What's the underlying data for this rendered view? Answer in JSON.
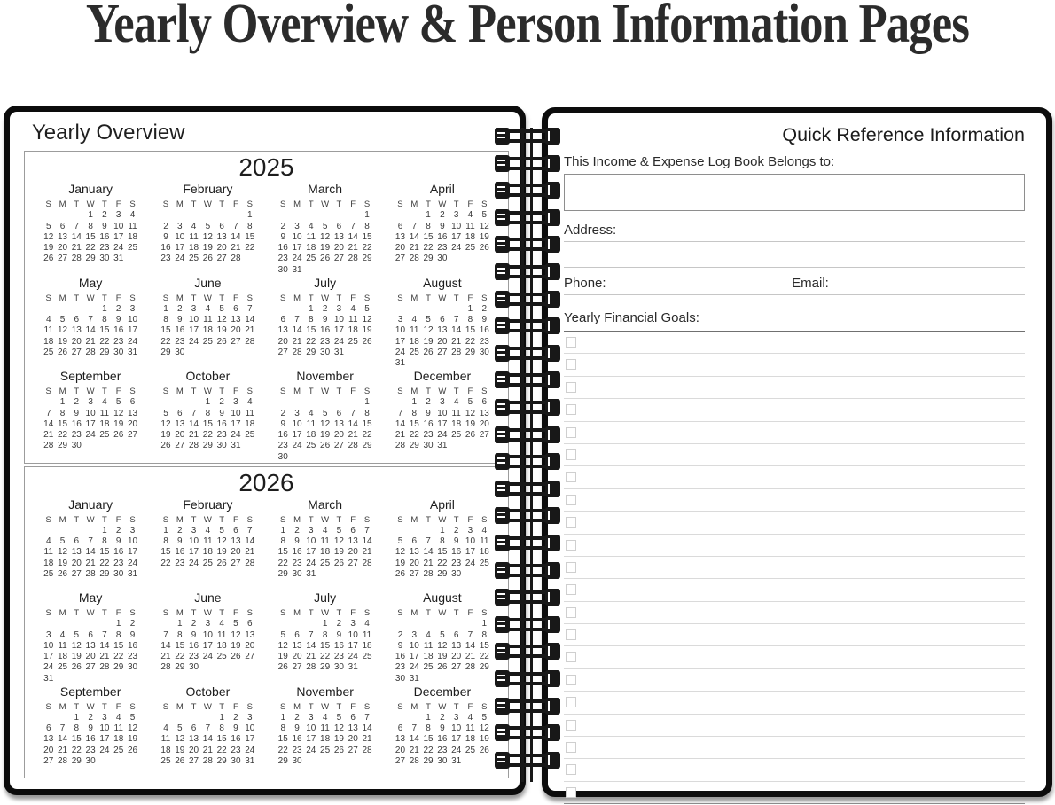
{
  "page_title": "Yearly Overview & Person Information Pages",
  "colors": {
    "page_border": "#0c0c0c",
    "rule_line": "#c6c6c6",
    "dark_rule": "#707070",
    "checkbox_border": "#cfcfcf",
    "text": "#2a2a2a"
  },
  "left_page": {
    "heading": "Yearly Overview",
    "day_headers": [
      "S",
      "M",
      "T",
      "W",
      "T",
      "F",
      "S"
    ],
    "years": [
      {
        "year": "2025",
        "months": [
          {
            "name": "January",
            "first_dow": 3,
            "days": 31
          },
          {
            "name": "February",
            "first_dow": 6,
            "days": 28
          },
          {
            "name": "March",
            "first_dow": 6,
            "days": 31
          },
          {
            "name": "April",
            "first_dow": 2,
            "days": 30
          },
          {
            "name": "May",
            "first_dow": 4,
            "days": 31
          },
          {
            "name": "June",
            "first_dow": 0,
            "days": 30
          },
          {
            "name": "July",
            "first_dow": 2,
            "days": 31
          },
          {
            "name": "August",
            "first_dow": 5,
            "days": 31
          },
          {
            "name": "September",
            "first_dow": 1,
            "days": 30
          },
          {
            "name": "October",
            "first_dow": 3,
            "days": 31
          },
          {
            "name": "November",
            "first_dow": 6,
            "days": 30
          },
          {
            "name": "December",
            "first_dow": 1,
            "days": 31
          }
        ]
      },
      {
        "year": "2026",
        "months": [
          {
            "name": "January",
            "first_dow": 4,
            "days": 31
          },
          {
            "name": "February",
            "first_dow": 0,
            "days": 28
          },
          {
            "name": "March",
            "first_dow": 0,
            "days": 31
          },
          {
            "name": "April",
            "first_dow": 3,
            "days": 30
          },
          {
            "name": "May",
            "first_dow": 5,
            "days": 31
          },
          {
            "name": "June",
            "first_dow": 1,
            "days": 30
          },
          {
            "name": "July",
            "first_dow": 3,
            "days": 31
          },
          {
            "name": "August",
            "first_dow": 6,
            "days": 31
          },
          {
            "name": "September",
            "first_dow": 2,
            "days": 30
          },
          {
            "name": "October",
            "first_dow": 4,
            "days": 31
          },
          {
            "name": "November",
            "first_dow": 0,
            "days": 30
          },
          {
            "name": "December",
            "first_dow": 2,
            "days": 31
          }
        ]
      }
    ]
  },
  "right_page": {
    "heading": "Quick Reference Information",
    "belongs_to_label": "This Income & Expense Log Book Belongs to:",
    "belongs_to_value": "",
    "address_label": "Address:",
    "phone_label": "Phone:",
    "email_label": "Email:",
    "goals_label": "Yearly Financial Goals:",
    "goal_rows": 21
  },
  "binding": {
    "coil_count": 24
  }
}
